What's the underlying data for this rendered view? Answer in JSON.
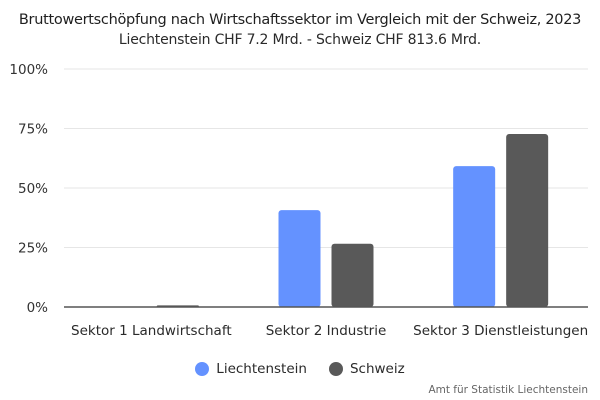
{
  "chart_data": {
    "type": "bar",
    "title": "Bruttowertschöpfung nach Wirtschaftssektor im Vergleich mit der Schweiz, 2023",
    "subtitle": "Liechtenstein CHF 7.2 Mrd. - Schweiz CHF 813.6 Mrd.",
    "xlabel": "",
    "ylabel": "",
    "categories": [
      "Sektor 1 Landwirtschaft",
      "Sektor 2 Industrie",
      "Sektor 3 Dienstleistungen"
    ],
    "series": [
      {
        "name": "Liechtenstein",
        "color": "#6492ff",
        "values": [
          0.1,
          40.7,
          59.2
        ]
      },
      {
        "name": "Schweiz",
        "color": "#595959",
        "values": [
          0.7,
          26.6,
          72.7
        ]
      }
    ],
    "ylim": [
      0,
      100
    ],
    "yticks": [
      0,
      25,
      50,
      75,
      100
    ],
    "ytick_labels": [
      "0%",
      "25%",
      "50%",
      "75%",
      "100%"
    ],
    "grid": true,
    "legend": "bottom-center",
    "source": "Amt für Statistik Liechtenstein"
  }
}
